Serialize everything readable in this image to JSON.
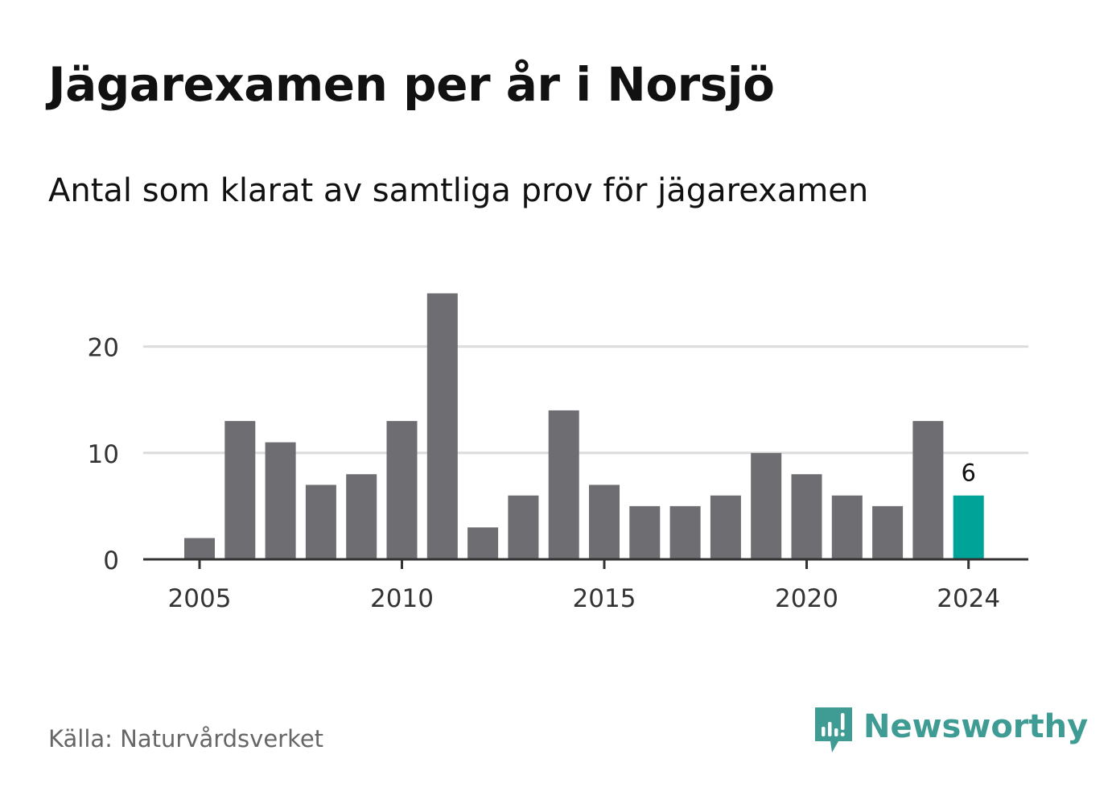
{
  "title": "Jägarexamen per år i Norsjö",
  "subtitle": "Antal som klarat av samtliga prov för jägarexamen",
  "source": "Källa: Naturvårdsverket",
  "brand": {
    "name": "Newsworthy",
    "color": "#3f9c94",
    "icon": "newsworthy-logo-icon"
  },
  "colors": {
    "bar": "#6e6d72",
    "highlight": "#00a398",
    "grid": "#dcdcdc",
    "axis": "#333333",
    "tick_text": "#333333"
  },
  "chart_data": {
    "type": "bar",
    "categories": [
      2005,
      2006,
      2007,
      2008,
      2009,
      2010,
      2011,
      2012,
      2013,
      2014,
      2015,
      2016,
      2017,
      2018,
      2019,
      2020,
      2021,
      2022,
      2023,
      2024
    ],
    "values": [
      2,
      13,
      11,
      7,
      8,
      13,
      25,
      3,
      6,
      14,
      7,
      5,
      5,
      6,
      10,
      8,
      6,
      5,
      13,
      6
    ],
    "x_tick_labels": [
      "2005",
      "2010",
      "2015",
      "2020",
      "2024"
    ],
    "x_ticks": [
      2005,
      2010,
      2015,
      2020,
      2024
    ],
    "y_ticks": [
      0,
      10,
      20
    ],
    "y_tick_labels": [
      "0",
      "10",
      "20"
    ],
    "ylim": [
      0,
      27
    ],
    "grid": true,
    "highlight_category": 2024,
    "data_labels": [
      {
        "category": 2024,
        "text": "6"
      }
    ]
  }
}
